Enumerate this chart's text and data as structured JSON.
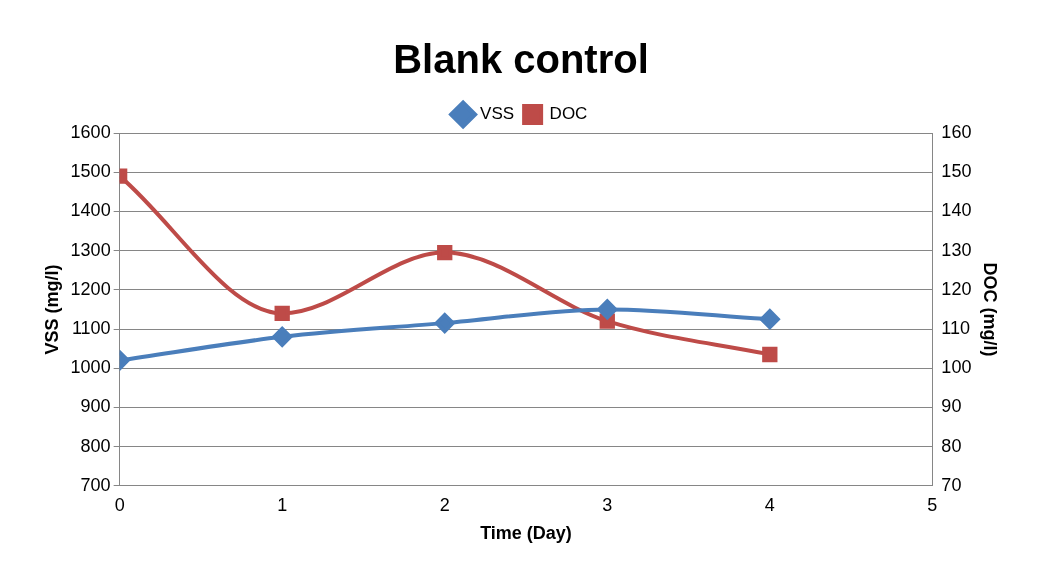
{
  "chart_data": {
    "type": "line",
    "title": "Blank control",
    "xlabel": "Time (Day)",
    "ylabel": "VSS (mg/l)",
    "y2label": "DOC (mg/l)",
    "x": [
      0,
      1,
      2,
      3,
      4
    ],
    "xlim": [
      0,
      5
    ],
    "xticks": [
      0,
      1,
      2,
      3,
      4,
      5
    ],
    "ylim": [
      700,
      1600
    ],
    "yticks": [
      700,
      800,
      900,
      1000,
      1100,
      1200,
      1300,
      1400,
      1500,
      1600
    ],
    "y2lim": [
      70,
      160
    ],
    "y2ticks": [
      70,
      80,
      90,
      100,
      110,
      120,
      130,
      140,
      150,
      160
    ],
    "grid": "y",
    "legend": "top",
    "series": [
      {
        "name": "VSS",
        "color": "#4a7ebb",
        "marker": "diamond",
        "values": [
          1020,
          1080,
          1115,
          1150,
          1125
        ]
      },
      {
        "name": "DOC",
        "color": "#be4b48",
        "marker": "square",
        "axis": "y2",
        "values": [
          149,
          114,
          129.5,
          112,
          103.5
        ]
      }
    ]
  }
}
